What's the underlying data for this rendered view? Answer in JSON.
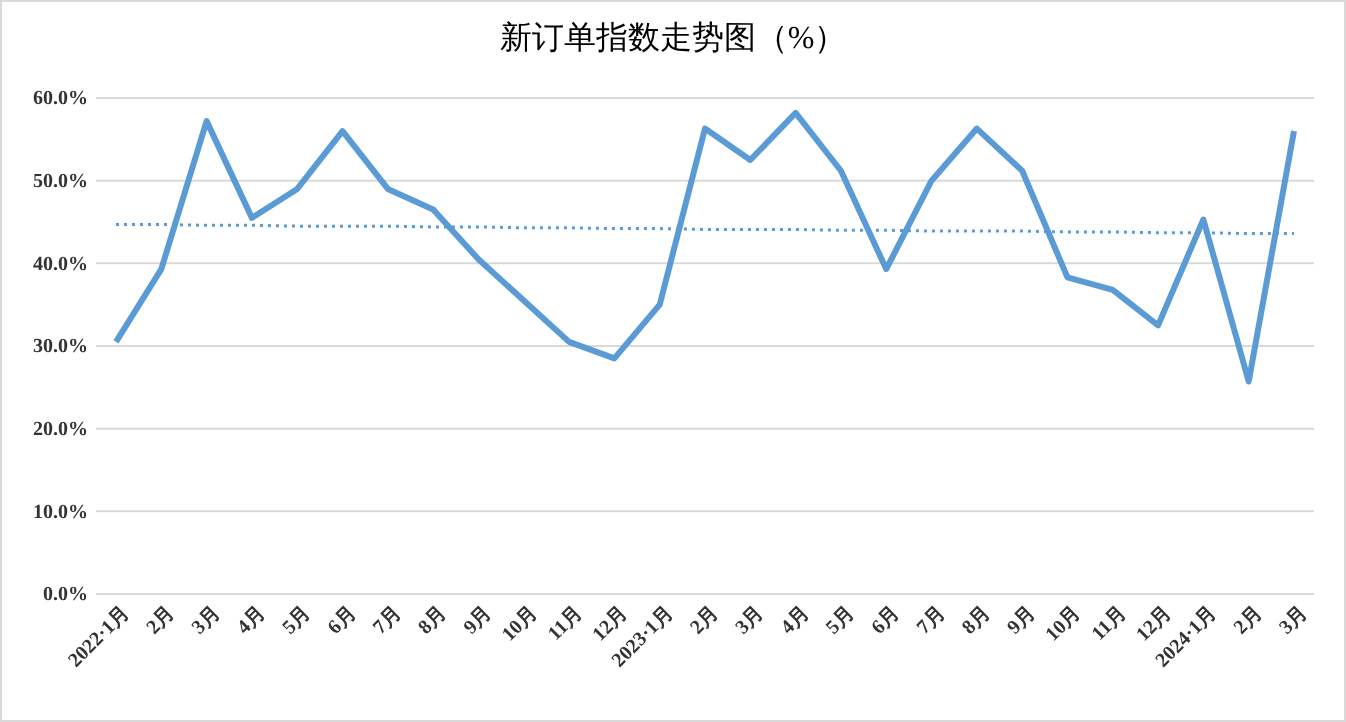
{
  "chart_data": {
    "type": "line",
    "title": "新订单指数走势图（%）",
    "categories": [
      "2022·1月",
      "2月",
      "3月",
      "4月",
      "5月",
      "6月",
      "7月",
      "8月",
      "9月",
      "10月",
      "11月",
      "12月",
      "2023·1月",
      "2月",
      "3月",
      "4月",
      "5月",
      "6月",
      "7月",
      "8月",
      "9月",
      "10月",
      "11月",
      "12月",
      "2024·1月",
      "2月",
      "3月"
    ],
    "series": [
      {
        "color": "#5b9bd5",
        "line_style": "solid",
        "values": [
          30.5,
          39.3,
          57.2,
          45.5,
          49,
          56,
          49,
          46.5,
          40.5,
          35.5,
          30.5,
          28.5,
          35,
          56.3,
          52.5,
          58.2,
          51.2,
          39.3,
          50,
          56.3,
          51.2,
          38.3,
          36.8,
          32.5,
          45.3,
          25.7,
          56
        ]
      },
      {
        "type": "line",
        "color": "#5b9bd5",
        "line_style": "dotted",
        "values": [
          44.7,
          44.7,
          44.6,
          44.6,
          44.5,
          44.5,
          44.5,
          44.4,
          44.4,
          44.3,
          44.3,
          44.2,
          44.2,
          44.1,
          44.1,
          44.1,
          44.0,
          44.0,
          43.9,
          43.9,
          43.9,
          43.8,
          43.8,
          43.7,
          43.7,
          43.6,
          43.6
        ]
      }
    ],
    "ylim": [
      0,
      60
    ],
    "yticks": [
      {
        "value": 0,
        "label": "0.0%"
      },
      {
        "value": 10,
        "label": "10.0%"
      },
      {
        "value": 20,
        "label": "20.0%"
      },
      {
        "value": 30,
        "label": "30.0%"
      },
      {
        "value": 40,
        "label": "40.0%"
      },
      {
        "value": 50,
        "label": "50.0%"
      },
      {
        "value": 60,
        "label": "60.0%"
      }
    ],
    "grid": "y",
    "marker": "none"
  }
}
